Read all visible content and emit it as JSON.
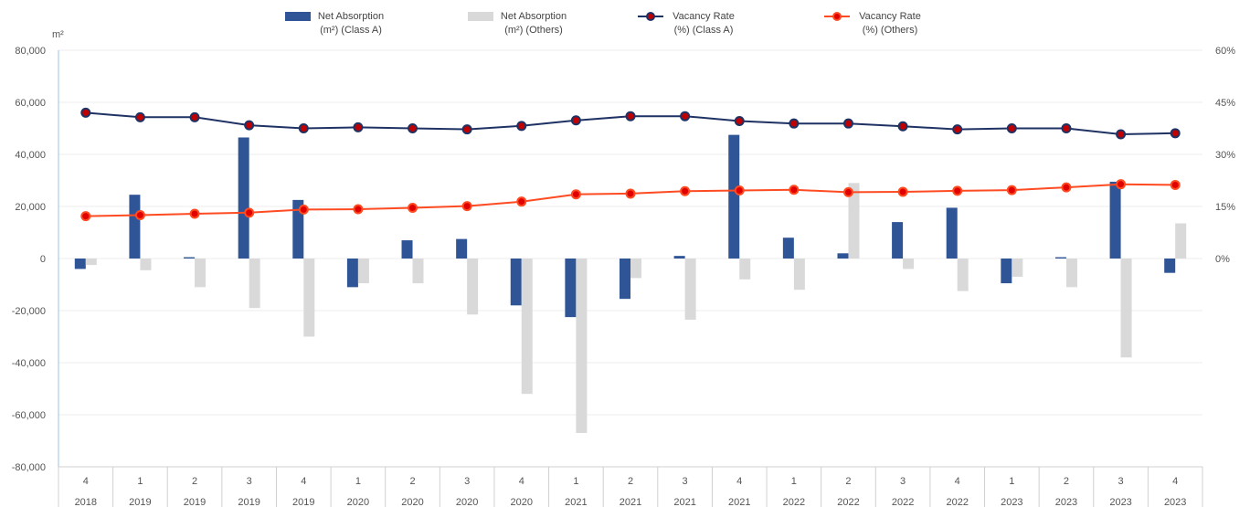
{
  "chart_data": {
    "type": "bar",
    "left_unit": "m²",
    "categories": [
      {
        "q": "4",
        "y": "2018"
      },
      {
        "q": "1",
        "y": "2019"
      },
      {
        "q": "2",
        "y": "2019"
      },
      {
        "q": "3",
        "y": "2019"
      },
      {
        "q": "4",
        "y": "2019"
      },
      {
        "q": "1",
        "y": "2020"
      },
      {
        "q": "2",
        "y": "2020"
      },
      {
        "q": "3",
        "y": "2020"
      },
      {
        "q": "4",
        "y": "2020"
      },
      {
        "q": "1",
        "y": "2021"
      },
      {
        "q": "2",
        "y": "2021"
      },
      {
        "q": "3",
        "y": "2021"
      },
      {
        "q": "4",
        "y": "2021"
      },
      {
        "q": "1",
        "y": "2022"
      },
      {
        "q": "2",
        "y": "2022"
      },
      {
        "q": "3",
        "y": "2022"
      },
      {
        "q": "4",
        "y": "2022"
      },
      {
        "q": "1",
        "y": "2023"
      },
      {
        "q": "2",
        "y": "2023"
      },
      {
        "q": "3",
        "y": "2023"
      },
      {
        "q": "4",
        "y": "2023"
      }
    ],
    "left_axis": {
      "ylim": [
        -80000,
        80000
      ],
      "ticks": [
        {
          "v": 80000,
          "label": "80,000"
        },
        {
          "v": 60000,
          "label": "60,000"
        },
        {
          "v": 40000,
          "label": "40,000"
        },
        {
          "v": 20000,
          "label": "20,000"
        },
        {
          "v": 0,
          "label": "0"
        },
        {
          "v": -20000,
          "label": "-20,000"
        },
        {
          "v": -40000,
          "label": "-40,000"
        },
        {
          "v": -60000,
          "label": "-60,000"
        },
        {
          "v": -80000,
          "label": "-80,000"
        }
      ]
    },
    "right_axis": {
      "ylim": [
        -60,
        60
      ],
      "ticks": [
        {
          "v": 60,
          "label": "60%"
        },
        {
          "v": 45,
          "label": "45%"
        },
        {
          "v": 30,
          "label": "30%"
        },
        {
          "v": 15,
          "label": "15%"
        },
        {
          "v": 0,
          "label": "0%"
        }
      ]
    },
    "series": [
      {
        "name": "Net Absorption (m²) (Class A)",
        "legend_lines": [
          "Net Absorption",
          "(m²) (Class A)"
        ],
        "kind": "bar",
        "axis": "left",
        "color": "#2f5597",
        "values": [
          -4000,
          24500,
          500,
          46500,
          22500,
          -11000,
          7000,
          7500,
          -18000,
          -22500,
          -15500,
          1000,
          47500,
          8000,
          2000,
          14000,
          19500,
          -9500,
          500,
          29500,
          -5500
        ]
      },
      {
        "name": "Net Absorption (m²) (Others)",
        "legend_lines": [
          "Net Absorption",
          "(m²) (Others)"
        ],
        "kind": "bar",
        "axis": "left",
        "color": "#d9d9d9",
        "values": [
          -2500,
          -4500,
          -11000,
          -19000,
          -30000,
          -9500,
          -9500,
          -21500,
          -52000,
          -67000,
          -7500,
          -23500,
          -8000,
          -12000,
          29000,
          -4000,
          -12500,
          -7000,
          -11000,
          -38000,
          13500
        ]
      },
      {
        "name": "Vacancy Rate (%) (Class A)",
        "legend_lines": [
          "Vacancy Rate",
          "(%) (Class A)"
        ],
        "kind": "line",
        "axis": "right",
        "color": "#1f3264",
        "marker": "#c00000",
        "values": [
          42,
          40.7,
          40.7,
          38.4,
          37.5,
          37.8,
          37.5,
          37.2,
          38.2,
          39.8,
          41,
          41,
          39.6,
          38.9,
          38.9,
          38.1,
          37.2,
          37.5,
          37.5,
          35.8,
          36.1
        ]
      },
      {
        "name": "Vacancy Rate (%) (Others)",
        "legend_lines": [
          "Vacancy Rate",
          "(%) (Others)"
        ],
        "kind": "line",
        "axis": "right",
        "color": "#ff4b22",
        "marker": "#e00000",
        "values": [
          12.2,
          12.5,
          12.9,
          13.2,
          14.1,
          14.2,
          14.6,
          15.1,
          16.4,
          18.5,
          18.7,
          19.4,
          19.6,
          19.8,
          19.1,
          19.2,
          19.5,
          19.7,
          20.5,
          21.4,
          21.2
        ]
      }
    ],
    "legend_position": "top-center",
    "grid": true
  }
}
